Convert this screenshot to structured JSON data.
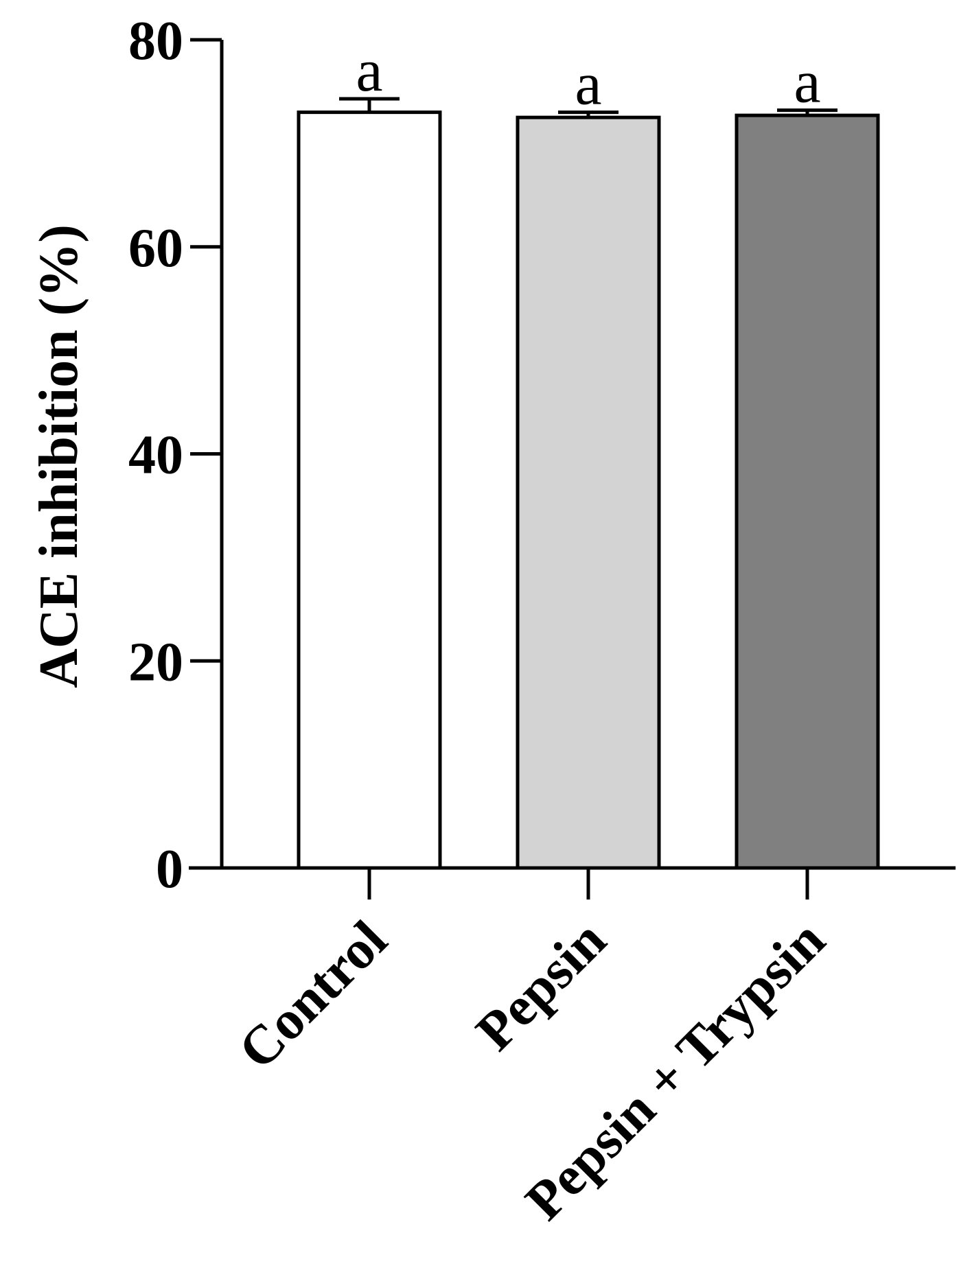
{
  "chart_data": {
    "type": "bar",
    "title": "",
    "xlabel": "",
    "ylabel": "ACE inhibition (%)",
    "ylim": [
      0,
      80
    ],
    "yticks": [
      0,
      20,
      40,
      60,
      80
    ],
    "categories": [
      "Control",
      "Pepsin",
      "Pepsin + Trypsin"
    ],
    "values": [
      73.0,
      72.5,
      72.7
    ],
    "errors": [
      1.3,
      0.5,
      0.5
    ],
    "significance_letters": [
      "a",
      "a",
      "a"
    ],
    "bar_colors": [
      "#ffffff",
      "#d3d3d3",
      "#808080"
    ],
    "grid": false,
    "legend": "none"
  }
}
